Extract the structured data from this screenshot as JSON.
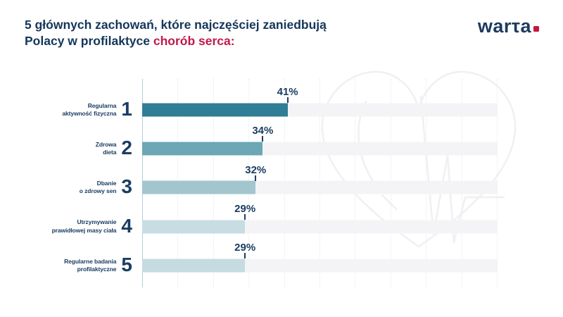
{
  "header": {
    "title_line1": "5 głównych zachowań, które najczęściej zaniedbują",
    "title_line2_prefix": "Polacy w profilaktyce ",
    "title_line2_highlight": "chorób serca:",
    "title_color": "#14365a",
    "highlight_color": "#c2194b"
  },
  "logo": {
    "text": "warτa",
    "color": "#1e3a5f",
    "dot_color": "#c2193f"
  },
  "chart_data": {
    "type": "bar",
    "orientation": "horizontal",
    "title": "5 głównych zachowań, które najczęściej zaniedbują Polacy w profilaktyce chorób serca",
    "categories": [
      "Regularna aktywność fizyczna",
      "Zdrowa dieta",
      "Dbanie o zdrowy sen",
      "Utrzymywanie prawidłowej masy ciała",
      "Regularne badania profilaktyczne"
    ],
    "category_lines": [
      [
        "Regularna",
        "aktywność fizyczna"
      ],
      [
        "Zdrowa",
        "dieta"
      ],
      [
        "Dbanie",
        "o zdrowy sen"
      ],
      [
        "Utrzymywanie",
        "prawidłowej masy ciała"
      ],
      [
        "Regularne badania",
        "profilaktyczne"
      ]
    ],
    "ranks": [
      "1",
      "2",
      "3",
      "4",
      "5"
    ],
    "values": [
      41,
      34,
      32,
      29,
      29
    ],
    "unit": "%",
    "xlim": [
      0,
      100
    ],
    "gridline_step_pct": 10,
    "grid": true,
    "legend": false,
    "bar_colors": [
      "#2f7e95",
      "#6ba7b5",
      "#a2c5ce",
      "#c7dde3",
      "#c4dce1"
    ],
    "track_color": "#f4f4f6",
    "label_color": "#1b3d63",
    "watermark": "heart-with-ekg-outline"
  }
}
